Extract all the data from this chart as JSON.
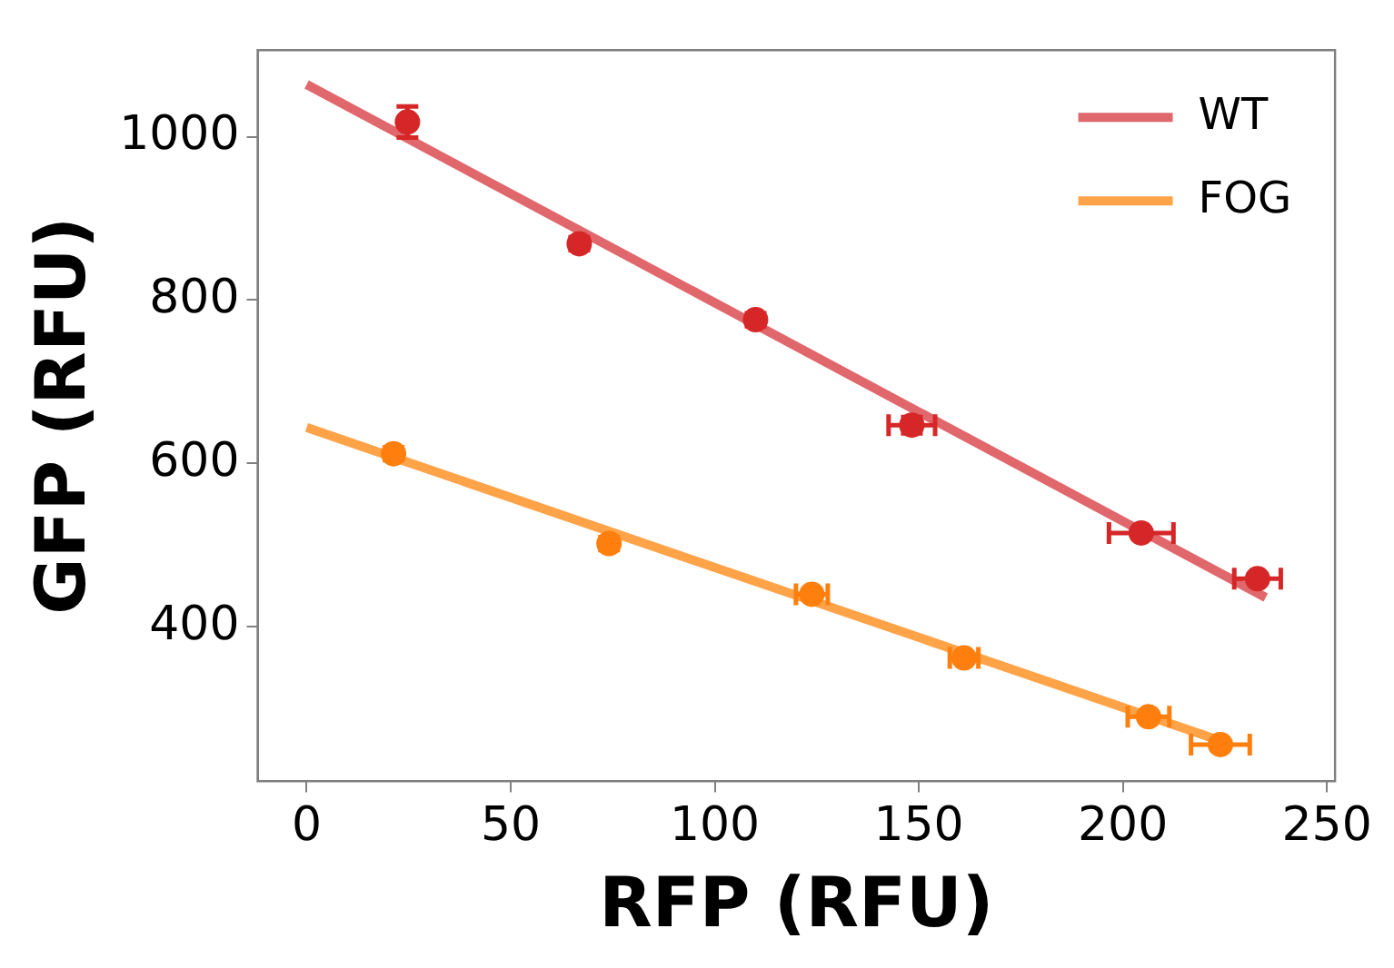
{
  "chart_data": {
    "type": "scatter",
    "xlabel": "RFP (RFU)",
    "ylabel": "GFP (RFU)",
    "xlim": [
      -12,
      252
    ],
    "xticks": [
      0,
      50,
      100,
      150,
      200,
      250
    ],
    "ylim": [
      211,
      1106
    ],
    "yticks": [
      400,
      600,
      800,
      1000
    ],
    "grid": false,
    "legend": "top right",
    "marker": "circle",
    "series": [
      {
        "type": "line",
        "name": "WT",
        "color": "#e0676b",
        "x": [
          0,
          235
        ],
        "values": [
          1064,
          436
        ],
        "marker": "none"
      },
      {
        "type": "line",
        "name": "FOG",
        "color": "#ffa348",
        "x": [
          0,
          226
        ],
        "values": [
          644,
          257
        ],
        "marker": "none"
      },
      {
        "color": "#d62728",
        "x": [
          24.7,
          66.8,
          110,
          148.3,
          204.5,
          233
        ],
        "values": [
          1018,
          869,
          776,
          647,
          515,
          459
        ],
        "errors": [
          19,
          8,
          8,
          10,
          null,
          null
        ],
        "xerrors": [
          null,
          null,
          null,
          5.7,
          7.9,
          5.7
        ]
      },
      {
        "color": "#ff7f0e",
        "x": [
          21.3,
          74.1,
          123.8,
          161.1,
          206.3,
          223.9
        ],
        "values": [
          612,
          502,
          440,
          362,
          290,
          256
        ],
        "errors": [
          8,
          8,
          null,
          null,
          null,
          null
        ],
        "xerrors": [
          null,
          null,
          3.9,
          3.5,
          5.1,
          7.2
        ]
      }
    ]
  }
}
